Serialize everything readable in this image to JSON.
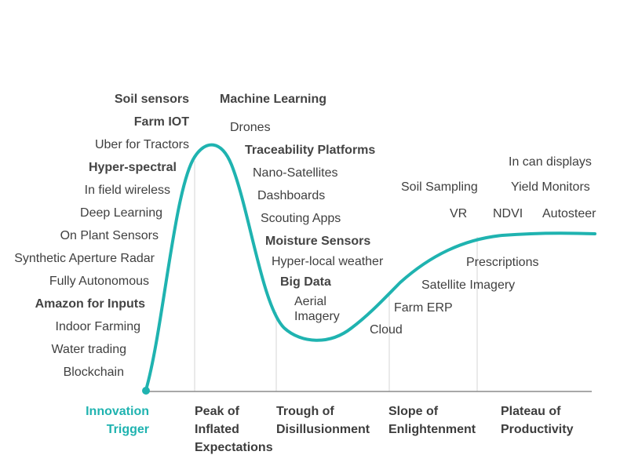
{
  "colors": {
    "accent": "#1fb3b0",
    "text": "#3f3f3f",
    "axis": "#8c8c8c",
    "divider": "#d6d6d6"
  },
  "phases": [
    {
      "id": "innovation-trigger",
      "lines": [
        "Innovation",
        "Trigger"
      ],
      "accent": true
    },
    {
      "id": "peak",
      "lines": [
        "Peak of",
        "Inflated",
        "Expectations"
      ]
    },
    {
      "id": "trough",
      "lines": [
        "Trough of",
        "Disillusionment"
      ]
    },
    {
      "id": "slope",
      "lines": [
        "Slope of",
        "Enlightenment"
      ]
    },
    {
      "id": "plateau",
      "lines": [
        "Plateau of",
        "Productivity"
      ]
    }
  ],
  "technologies": [
    {
      "text": "Soil sensors",
      "bold": true
    },
    {
      "text": "Farm IOT",
      "bold": true
    },
    {
      "text": "Uber for Tractors",
      "bold": false
    },
    {
      "text": "Hyper-spectral",
      "bold": true
    },
    {
      "text": "In field wireless",
      "bold": false
    },
    {
      "text": "Deep Learning",
      "bold": false
    },
    {
      "text": "On Plant Sensors",
      "bold": false
    },
    {
      "text": "Synthetic Aperture Radar",
      "bold": false
    },
    {
      "text": "Fully Autonomous",
      "bold": false
    },
    {
      "text": "Amazon for Inputs",
      "bold": true
    },
    {
      "text": "Indoor Farming",
      "bold": false
    },
    {
      "text": "Water trading",
      "bold": false
    },
    {
      "text": "Blockchain",
      "bold": false
    },
    {
      "text": "Machine Learning",
      "bold": true
    },
    {
      "text": "Drones",
      "bold": false
    },
    {
      "text": "Traceability Platforms",
      "bold": true
    },
    {
      "text": "Nano-Satellites",
      "bold": false
    },
    {
      "text": "Dashboards",
      "bold": false
    },
    {
      "text": "Scouting Apps",
      "bold": false
    },
    {
      "text": "Moisture Sensors",
      "bold": true
    },
    {
      "text": "Hyper-local weather",
      "bold": false
    },
    {
      "text": "Big Data",
      "bold": true
    },
    {
      "text": "Aerial",
      "bold": false
    },
    {
      "text": "Imagery",
      "bold": false
    },
    {
      "text": "Cloud",
      "bold": false
    },
    {
      "text": "Farm ERP",
      "bold": false
    },
    {
      "text": "Satellite Imagery",
      "bold": false
    },
    {
      "text": "Prescriptions",
      "bold": false
    },
    {
      "text": "Soil Sampling",
      "bold": false
    },
    {
      "text": "VR",
      "bold": false
    },
    {
      "text": "NDVI",
      "bold": false
    },
    {
      "text": "In can displays",
      "bold": false
    },
    {
      "text": "Yield Monitors",
      "bold": false
    },
    {
      "text": "Autosteer",
      "bold": false
    }
  ]
}
